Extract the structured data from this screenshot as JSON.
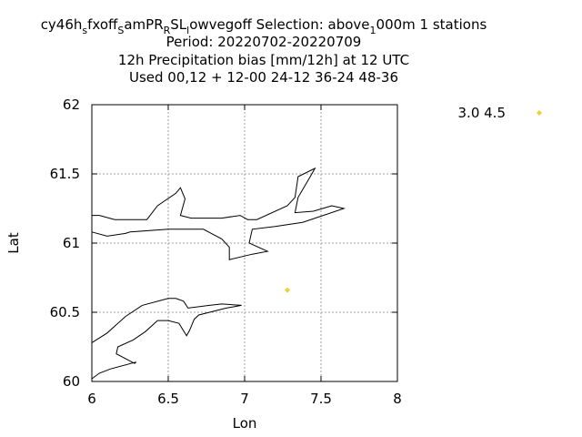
{
  "chart_data": {
    "type": "scatter",
    "title_lines": [
      {
        "parts": [
          {
            "t": "cy46h",
            "sub": false
          },
          {
            "t": "s",
            "sub": true
          },
          {
            "t": "fxoff",
            "sub": false
          },
          {
            "t": "S",
            "sub": true
          },
          {
            "t": "amPR",
            "sub": false
          },
          {
            "t": "R",
            "sub": true
          },
          {
            "t": "SL",
            "sub": false
          },
          {
            "t": "l",
            "sub": true
          },
          {
            "t": "owvegoff   Selection: above",
            "sub": false
          },
          {
            "t": "1",
            "sub": true
          },
          {
            "t": "000m      1 stations",
            "sub": false
          }
        ]
      },
      {
        "parts": [
          {
            "t": "Period: 20220702-20220709",
            "sub": false
          }
        ]
      },
      {
        "parts": [
          {
            "t": "12h Precipitation bias [mm/12h] at  12 UTC",
            "sub": false
          }
        ]
      },
      {
        "parts": [
          {
            "t": "Used  00,12  + 12-00 24-12 36-24 48-36",
            "sub": false
          }
        ]
      }
    ],
    "xlabel": "Lon",
    "ylabel": "Lat",
    "xlim": [
      6,
      8
    ],
    "ylim": [
      60,
      62
    ],
    "xticks": [
      "6",
      "6.5",
      "7",
      "7.5",
      "8"
    ],
    "yticks": [
      "60",
      "60.5",
      "61",
      "61.5",
      "62"
    ],
    "grid": true,
    "legend": {
      "placement": "right",
      "label": "3.0 4.5",
      "color": "#f0d030"
    },
    "points": [
      {
        "x": 7.28,
        "y": 60.66,
        "color": "#f0d030"
      }
    ],
    "coastlines": [
      [
        [
          6.0,
          61.2
        ],
        [
          6.05,
          61.2
        ],
        [
          6.15,
          61.17
        ],
        [
          6.36,
          61.17
        ],
        [
          6.43,
          61.27
        ],
        [
          6.55,
          61.36
        ],
        [
          6.58,
          61.4
        ],
        [
          6.61,
          61.32
        ],
        [
          6.58,
          61.2
        ],
        [
          6.65,
          61.18
        ],
        [
          6.85,
          61.18
        ],
        [
          6.97,
          61.2
        ],
        [
          7.02,
          61.17
        ],
        [
          7.08,
          61.17
        ],
        [
          7.28,
          61.27
        ],
        [
          7.33,
          61.33
        ],
        [
          7.35,
          61.48
        ],
        [
          7.46,
          61.54
        ],
        [
          7.43,
          61.48
        ],
        [
          7.35,
          61.33
        ],
        [
          7.33,
          61.22
        ],
        [
          7.45,
          61.23
        ],
        [
          7.57,
          61.27
        ],
        [
          7.65,
          61.25
        ],
        [
          7.38,
          61.15
        ],
        [
          7.2,
          61.12
        ],
        [
          7.05,
          61.1
        ],
        [
          7.03,
          61.0
        ],
        [
          7.15,
          60.94
        ],
        [
          7.05,
          60.92
        ],
        [
          6.9,
          60.88
        ],
        [
          6.9,
          60.97
        ],
        [
          6.85,
          61.03
        ],
        [
          6.73,
          61.1
        ],
        [
          6.5,
          61.1
        ],
        [
          6.25,
          61.08
        ],
        [
          6.22,
          61.07
        ],
        [
          6.1,
          61.05
        ],
        [
          6.0,
          61.08
        ]
      ],
      [
        [
          6.0,
          60.28
        ],
        [
          6.1,
          60.35
        ],
        [
          6.22,
          60.47
        ],
        [
          6.33,
          60.55
        ],
        [
          6.5,
          60.6
        ],
        [
          6.55,
          60.6
        ],
        [
          6.6,
          60.58
        ],
        [
          6.63,
          60.53
        ],
        [
          6.77,
          60.55
        ],
        [
          6.85,
          60.56
        ],
        [
          6.98,
          60.55
        ],
        [
          6.88,
          60.53
        ],
        [
          6.7,
          60.48
        ],
        [
          6.67,
          60.45
        ],
        [
          6.64,
          60.37
        ],
        [
          6.62,
          60.33
        ],
        [
          6.57,
          60.42
        ],
        [
          6.5,
          60.44
        ],
        [
          6.43,
          60.44
        ],
        [
          6.35,
          60.36
        ],
        [
          6.27,
          60.3
        ],
        [
          6.17,
          60.25
        ],
        [
          6.16,
          60.2
        ],
        [
          6.28,
          60.13
        ],
        [
          6.29,
          60.14
        ],
        [
          6.12,
          60.09
        ],
        [
          6.05,
          60.06
        ],
        [
          6.0,
          60.02
        ]
      ]
    ]
  }
}
